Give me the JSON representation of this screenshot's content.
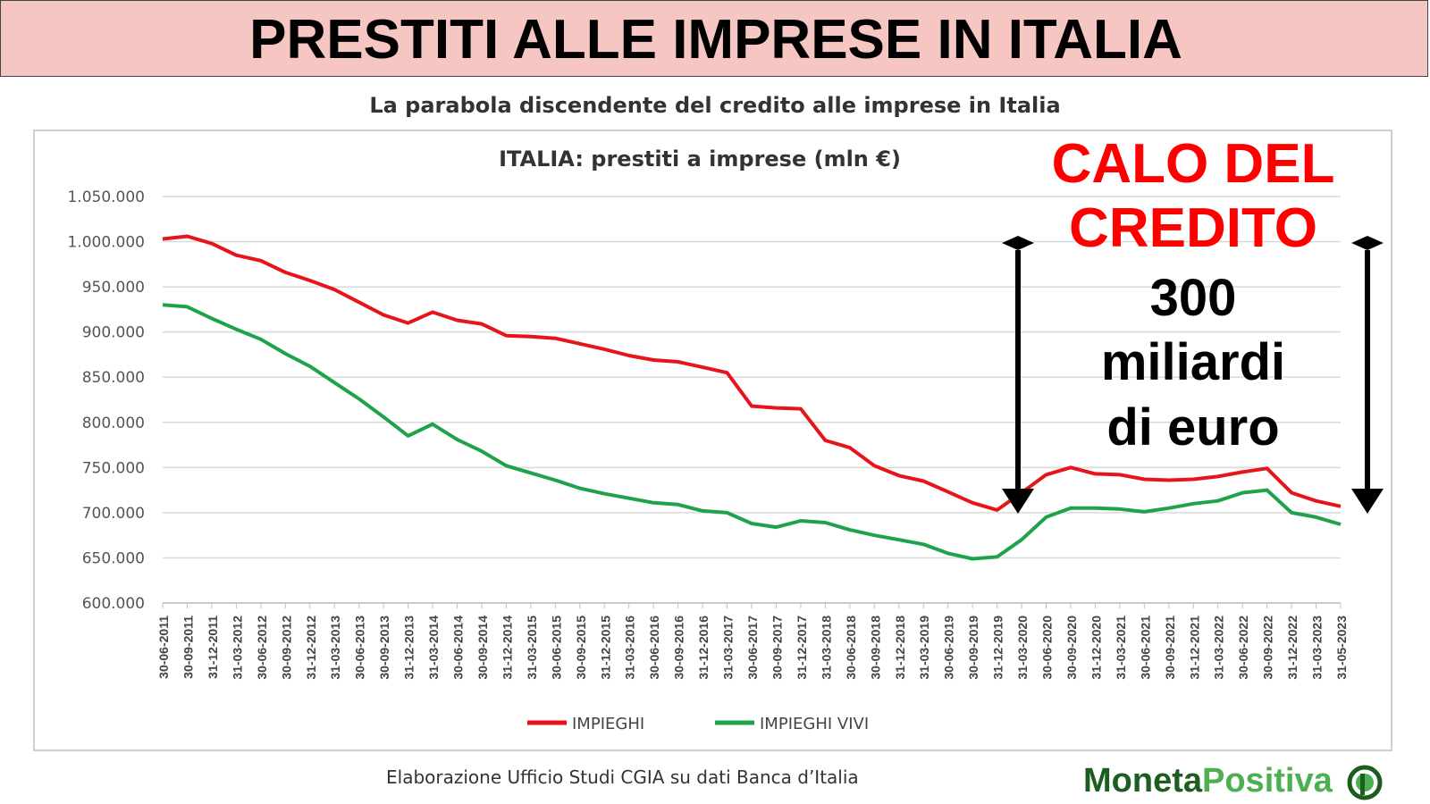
{
  "page": {
    "banner_title": "PRESTITI ALLE IMPRESE IN ITALIA",
    "figure_title": "La parabola discendente del credito alle imprese in Italia",
    "source": "Elaborazione Ufficio Studi CGIA su dati Banca d’Italia",
    "brand": {
      "part1": "Moneta",
      "part2": "Positiva",
      "logo_icon": "moneta-positiva-logo-icon"
    }
  },
  "annotation": {
    "lines": [
      "CALO DEL",
      "CREDITO",
      "300",
      "miliardi",
      "di euro"
    ],
    "colors": {
      "headline": "#ff0000",
      "body": "#000000"
    }
  },
  "chart_data": {
    "type": "line",
    "title": "ITALIA: prestiti a imprese (mln €)",
    "xlabel": "",
    "ylabel": "",
    "ylim": [
      600000,
      1050000
    ],
    "yticks": [
      600000,
      650000,
      700000,
      750000,
      800000,
      850000,
      900000,
      950000,
      1000000,
      1050000
    ],
    "ytick_labels": [
      "600.000",
      "650.000",
      "700.000",
      "750.000",
      "800.000",
      "850.000",
      "900.000",
      "950.000",
      "1.000.000",
      "1.050.000"
    ],
    "grid": true,
    "legend_position": "bottom",
    "categories": [
      "30-06-2011",
      "30-09-2011",
      "31-12-2011",
      "31-03-2012",
      "30-06-2012",
      "30-09-2012",
      "31-12-2012",
      "31-03-2013",
      "30-06-2013",
      "30-09-2013",
      "31-12-2013",
      "31-03-2014",
      "30-06-2014",
      "30-09-2014",
      "31-12-2014",
      "31-03-2015",
      "30-06-2015",
      "30-09-2015",
      "31-12-2015",
      "31-03-2016",
      "30-06-2016",
      "30-09-2016",
      "31-12-2016",
      "31-03-2017",
      "30-06-2017",
      "30-09-2017",
      "31-12-2017",
      "31-03-2018",
      "30-06-2018",
      "30-09-2018",
      "31-12-2018",
      "31-03-2019",
      "30-06-2019",
      "30-09-2019",
      "31-12-2019",
      "31-03-2020",
      "30-06-2020",
      "30-09-2020",
      "31-12-2020",
      "31-03-2021",
      "30-06-2021",
      "30-09-2021",
      "31-12-2021",
      "31-03-2022",
      "30-06-2022",
      "30-09-2022",
      "31-12-2022",
      "31-03-2023",
      "31-05-2023"
    ],
    "series": [
      {
        "name": "IMPIEGHI",
        "color": "#e8141b",
        "values": [
          1003000,
          1006000,
          998000,
          985000,
          979000,
          966000,
          957000,
          947000,
          933000,
          919000,
          910000,
          922000,
          913000,
          909000,
          896000,
          895000,
          893000,
          887000,
          881000,
          874000,
          869000,
          867000,
          861000,
          855000,
          818000,
          816000,
          815000,
          780000,
          772000,
          752000,
          741000,
          735000,
          723000,
          711000,
          703000,
          722000,
          742000,
          750000,
          743000,
          742000,
          737000,
          736000,
          737000,
          740000,
          745000,
          749000,
          722000,
          713000,
          707000
        ]
      },
      {
        "name": "IMPIEGHI VIVI",
        "color": "#1fa34a",
        "values": [
          930000,
          928000,
          915000,
          903000,
          892000,
          876000,
          862000,
          844000,
          826000,
          806000,
          785000,
          798000,
          781000,
          768000,
          752000,
          744000,
          736000,
          727000,
          721000,
          716000,
          711000,
          709000,
          702000,
          700000,
          688000,
          684000,
          691000,
          689000,
          681000,
          675000,
          670000,
          665000,
          655000,
          649000,
          651000,
          670000,
          695000,
          705000,
          705000,
          704000,
          701000,
          705000,
          710000,
          713000,
          722000,
          725000,
          700000,
          695000,
          687000
        ]
      }
    ]
  }
}
